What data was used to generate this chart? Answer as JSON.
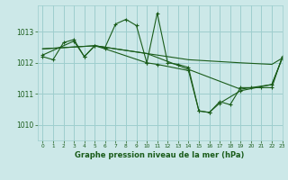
{
  "title": "Graphe pression niveau de la mer (hPa)",
  "background_color": "#cce8e8",
  "grid_color": "#9ecece",
  "line_color": "#1a5c1a",
  "xlim": [
    -0.5,
    23
  ],
  "ylim": [
    1009.5,
    1013.85
  ],
  "yticks": [
    1010,
    1011,
    1012,
    1013
  ],
  "xticks": [
    0,
    1,
    2,
    3,
    4,
    5,
    6,
    7,
    8,
    9,
    10,
    11,
    12,
    13,
    14,
    15,
    16,
    17,
    18,
    19,
    20,
    21,
    22,
    23
  ],
  "series1_x": [
    0,
    1,
    2,
    3,
    4,
    5,
    6,
    7,
    8,
    9,
    10,
    11,
    12,
    13,
    14,
    15,
    16,
    17,
    18,
    19,
    20,
    21,
    22,
    23
  ],
  "series1_y": [
    1012.2,
    1012.1,
    1012.65,
    1012.75,
    1012.2,
    1012.55,
    1012.5,
    1013.25,
    1013.4,
    1013.2,
    1012.0,
    1013.6,
    1012.0,
    1011.95,
    1011.85,
    1010.45,
    1010.4,
    1010.75,
    1010.65,
    1011.2,
    1011.2,
    1011.2,
    1011.2,
    1012.2
  ],
  "series2_x": [
    0,
    3,
    4,
    5,
    6,
    10,
    11,
    14,
    15,
    16,
    17,
    19,
    22,
    23
  ],
  "series2_y": [
    1012.25,
    1012.7,
    1012.2,
    1012.55,
    1012.45,
    1012.0,
    1011.95,
    1011.75,
    1010.45,
    1010.4,
    1010.7,
    1011.1,
    1011.3,
    1012.15
  ],
  "series3_x": [
    0,
    5,
    10,
    14,
    19,
    22,
    23
  ],
  "series3_y": [
    1012.45,
    1012.55,
    1012.3,
    1012.1,
    1012.0,
    1011.95,
    1012.15
  ],
  "series4_x": [
    0,
    5,
    10,
    19,
    22,
    23
  ],
  "series4_y": [
    1012.45,
    1012.55,
    1012.3,
    1011.15,
    1011.3,
    1012.15
  ]
}
